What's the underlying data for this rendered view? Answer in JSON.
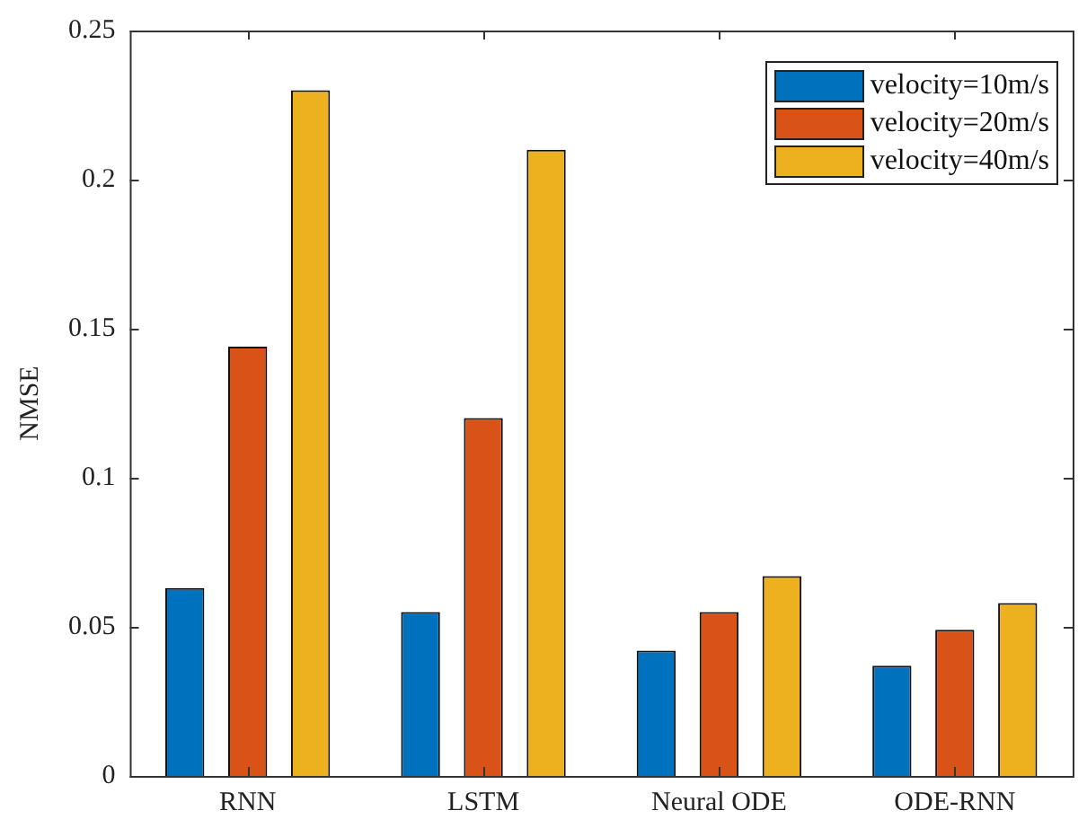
{
  "chart_data": {
    "type": "bar",
    "ylabel": "NMSE",
    "categories": [
      "RNN",
      "LSTM",
      "Neural ODE",
      "ODE-RNN"
    ],
    "series": [
      {
        "name": "velocity=10m/s",
        "color": "#0072bd",
        "values": [
          0.063,
          0.055,
          0.042,
          0.037
        ]
      },
      {
        "name": "velocity=20m/s",
        "color": "#d95319",
        "values": [
          0.144,
          0.12,
          0.055,
          0.049
        ]
      },
      {
        "name": "velocity=40m/s",
        "color": "#edb120",
        "values": [
          0.23,
          0.21,
          0.067,
          0.058
        ]
      }
    ],
    "ylim": [
      0,
      0.25
    ],
    "yticks": [
      0,
      0.05,
      0.1,
      0.15,
      0.2,
      0.25
    ],
    "grid": false,
    "legend": "top right"
  }
}
